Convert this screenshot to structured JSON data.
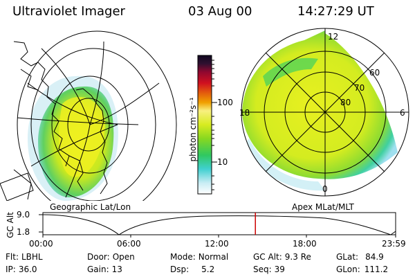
{
  "header": {
    "title": "Ultraviolet Imager",
    "date": "03 Aug 00",
    "time": "14:27:29 UT"
  },
  "left_map": {
    "label": "Geographic Lat/Lon"
  },
  "colorbar": {
    "unit_label": "photon cm⁻²s⁻¹",
    "ticks": [
      "100",
      "10"
    ]
  },
  "right_map": {
    "label": "Apex MLat/MLT",
    "mlt_labels": [
      "12",
      "18",
      "6",
      "0"
    ],
    "mlat_labels": [
      "60",
      "70",
      "80"
    ]
  },
  "timeline": {
    "axis_label": "GC Alt",
    "y_ticks": [
      "9.0",
      "1.8"
    ],
    "x_ticks": [
      "00:00",
      "06:00",
      "12:00",
      "18:00",
      "23:59"
    ],
    "current_time_fraction": 0.6024
  },
  "info": {
    "filter": {
      "key": "Flt:",
      "value": "LBHL"
    },
    "ip": {
      "key": "IP:",
      "value": "36.0"
    },
    "door": {
      "key": "Door:",
      "value": "Open"
    },
    "gain": {
      "key": "Gain:",
      "value": "13"
    },
    "mode": {
      "key": "Mode:",
      "value": "Normal"
    },
    "dsp": {
      "key": "Dsp:",
      "value": "5.2"
    },
    "gc_alt": {
      "key": "GC Alt:",
      "value": "9.3 Re"
    },
    "seq": {
      "key": "Seq:",
      "value": "39"
    },
    "glat": {
      "key": "GLat:",
      "value": "84.9"
    },
    "glon": {
      "key": "GLon:",
      "value": "111.2"
    }
  },
  "colors": {
    "aurora_core": "#e8f020",
    "aurora_mid": "#a8e020",
    "aurora_edge": "#40d060",
    "aurora_fringe": "#60d0e0",
    "marker": "#cc0000"
  }
}
